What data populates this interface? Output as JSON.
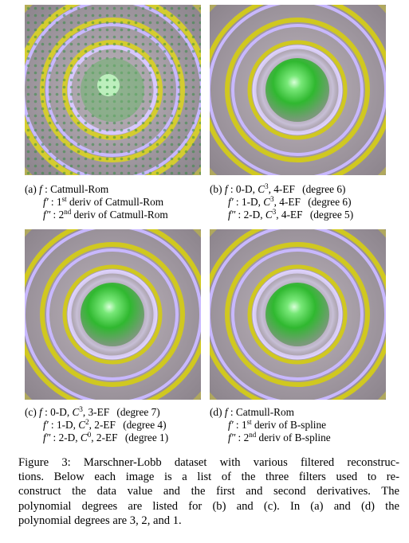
{
  "panels": [
    {
      "id": "a",
      "label": "(a)",
      "f_name": "f",
      "f_text": " : Catmull-Rom",
      "fp_name": "f′",
      "fp_pre": " : 1",
      "fp_sup": "st",
      "fp_post": " deriv of Catmull-Rom",
      "fpp_name": "f″",
      "fpp_pre": " : 2",
      "fpp_sup": "nd",
      "fpp_post": " deriv of Catmull-Rom"
    },
    {
      "id": "b",
      "label": "(b)",
      "f_name": "f",
      "f_pre": " : 0-D, ",
      "f_c": "C",
      "f_sup": "3",
      "f_post": ", 4-EF",
      "f_deg": "(degree 6)",
      "fp_name": "f′",
      "fp_pre": " : 1-D, ",
      "fp_c": "C",
      "fp_sup": "3",
      "fp_post": ", 4-EF",
      "fp_deg": "(degree 6)",
      "fpp_name": "f″",
      "fpp_pre": " : 2-D, ",
      "fpp_c": "C",
      "fpp_sup": "3",
      "fpp_post": ", 4-EF",
      "fpp_deg": "(degree 5)"
    },
    {
      "id": "c",
      "label": "(c)",
      "f_name": "f",
      "f_pre": " : 0-D, ",
      "f_c": "C",
      "f_sup": "3",
      "f_post": ", 3-EF",
      "f_deg": "(degree 7)",
      "fp_name": "f′",
      "fp_pre": " : 1-D, ",
      "fp_c": "C",
      "fp_sup": "2",
      "fp_post": ", 2-EF",
      "fp_deg": "(degree 4)",
      "fpp_name": "f″",
      "fpp_pre": " : 2-D, ",
      "fpp_c": "C",
      "fpp_sup": "0",
      "fpp_post": ", 2-EF",
      "fpp_deg": "(degree 1)"
    },
    {
      "id": "d",
      "label": "(d)",
      "f_name": "f",
      "f_text": " : Catmull-Rom",
      "fp_name": "f′",
      "fp_pre": " : 1",
      "fp_sup": "st",
      "fp_post": " deriv of B-spline",
      "fpp_name": "f″",
      "fpp_pre": " : 2",
      "fpp_sup": "nd",
      "fpp_post": " deriv of B-spline"
    }
  ],
  "figure_caption": {
    "lines": [
      "Figure 3: Marschner-Lobb dataset with various filtered reconstruc-",
      "tions.  Below each image is a list of the three filters used to re-",
      "construct the data value and the first and second derivatives.  The",
      "polynomial degrees are listed for (b) and (c).  In (a) and (d) the",
      "polynomial degrees are 3, 2, and 1."
    ]
  },
  "colors": {
    "ring_yellow": "#d8d020",
    "ring_lavender": "#c8b8ff",
    "sphere_green": "#30c030",
    "background_gray": "#a89ea8"
  }
}
